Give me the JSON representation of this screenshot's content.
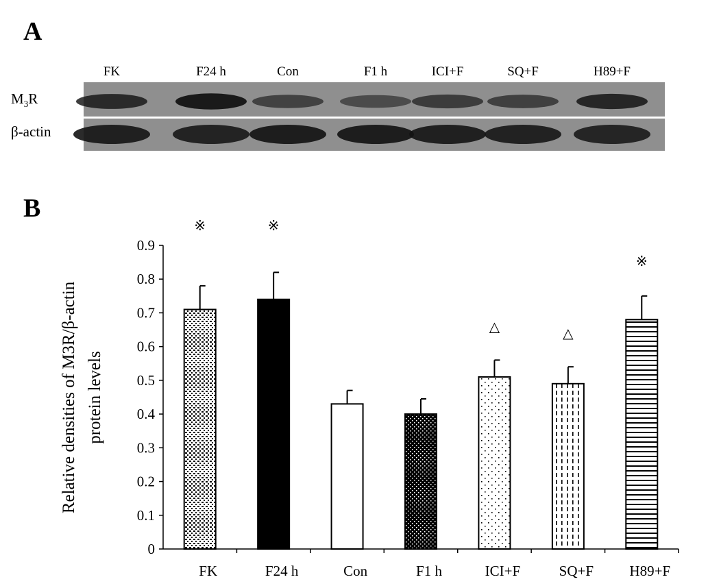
{
  "panels": {
    "a_label": "A",
    "b_label": "B"
  },
  "blot": {
    "lanes": [
      "FK",
      "F24 h",
      "Con",
      "F1 h",
      "ICI+F",
      "SQ+F",
      "H89+F"
    ],
    "row_m3r_main": "M",
    "row_m3r_sub": "3",
    "row_m3r_tail": "R",
    "row_actin": "β-actin",
    "m3r_intensity": [
      0.82,
      0.95,
      0.62,
      0.55,
      0.68,
      0.64,
      0.85
    ],
    "actin_intensity": [
      0.9,
      0.88,
      0.92,
      0.93,
      0.9,
      0.89,
      0.86
    ]
  },
  "chart_data": {
    "type": "bar",
    "categories": [
      "FK",
      "F24 h",
      "Con",
      "F1 h",
      "ICI+F",
      "SQ+F",
      "H89+F"
    ],
    "values": [
      0.71,
      0.74,
      0.43,
      0.4,
      0.51,
      0.49,
      0.68
    ],
    "errors": [
      0.07,
      0.08,
      0.04,
      0.045,
      0.05,
      0.05,
      0.07
    ],
    "fills": [
      "dense-dots",
      "solid-black",
      "white",
      "dots-on-black",
      "sparse-dots",
      "dashed-vertical",
      "horizontal-lines"
    ],
    "annotations": [
      "※",
      "※",
      "",
      "",
      "△",
      "△",
      "※"
    ],
    "ylabel_line1": "Relative densities of M3R/β-actin",
    "ylabel_line2": "protein  levels",
    "xlabel": "",
    "ylim": [
      0,
      0.9
    ],
    "yticks": [
      "0",
      "0.1",
      "0.2",
      "0.3",
      "0.4",
      "0.5",
      "0.6",
      "0.7",
      "0.8",
      "0.9"
    ],
    "grid": false
  },
  "colors": {
    "bar_edge": "#000000",
    "blot_bg": "#8f8f8f",
    "band": "#141414"
  }
}
